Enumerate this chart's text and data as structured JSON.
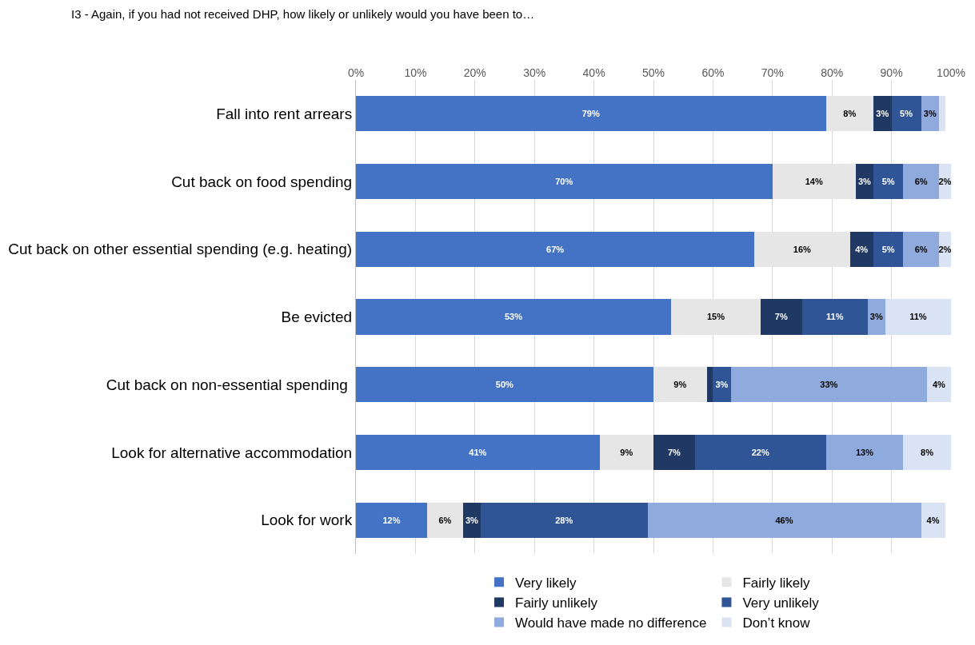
{
  "chart_data": {
    "type": "bar",
    "orientation": "horizontal",
    "stacked": true,
    "title": "I3 - Again, if you had not received DHP, how likely or unlikely would you have been to…",
    "categories": [
      "Fall into rent arrears",
      "Cut back on food spending",
      "Cut back on other essential spending (e.g. heating)",
      "Be evicted",
      "Cut back on non-essential spending ",
      "Look for alternative accommodation",
      "Look for work"
    ],
    "series": [
      {
        "name": "Very likely",
        "color": "#4472c4",
        "values": [
          79,
          70,
          67,
          53,
          50,
          41,
          12
        ],
        "value_labels": [
          "79%",
          "70%",
          "67%",
          "53%",
          "50%",
          "41%",
          "12%"
        ]
      },
      {
        "name": "Fairly likely",
        "color": "#e7e6e6",
        "values": [
          8,
          14,
          16,
          15,
          9,
          9,
          6
        ],
        "value_labels": [
          "8%",
          "14%",
          "16%",
          "15%",
          "9%",
          "9%",
          "6%"
        ]
      },
      {
        "name": "Fairly unlikely",
        "color": "#203864",
        "values": [
          3,
          3,
          4,
          7,
          1,
          7,
          3
        ],
        "value_labels": [
          "3%",
          "3%",
          "4%",
          "7%",
          null,
          "7%",
          "3%"
        ]
      },
      {
        "name": "Very unlikely",
        "color": "#2f5597",
        "values": [
          5,
          5,
          5,
          11,
          3,
          22,
          28
        ],
        "value_labels": [
          "5%",
          "5%",
          "5%",
          "11%",
          "3%",
          "22%",
          "28%"
        ]
      },
      {
        "name": "Would have made no difference",
        "color": "#8faadc",
        "values": [
          3,
          6,
          6,
          3,
          33,
          13,
          46
        ],
        "value_labels": [
          "3%",
          "6%",
          "6%",
          "3%",
          "33%",
          "13%",
          "46%"
        ]
      },
      {
        "name": "Don’t know",
        "color": "#dae3f3",
        "values": [
          1,
          2,
          2,
          11,
          4,
          8,
          4
        ],
        "value_labels": [
          null,
          "2%",
          "2%",
          "11%",
          "4%",
          "8%",
          "4%"
        ]
      }
    ],
    "xlim": [
      0,
      100
    ],
    "xticks": [
      {
        "value": 0,
        "label": "0%"
      },
      {
        "value": 10,
        "label": "10%"
      },
      {
        "value": 20,
        "label": "20%"
      },
      {
        "value": 30,
        "label": "30%"
      },
      {
        "value": 40,
        "label": "40%"
      },
      {
        "value": 50,
        "label": "50%"
      },
      {
        "value": 60,
        "label": "60%"
      },
      {
        "value": 70,
        "label": "70%"
      },
      {
        "value": 80,
        "label": "80%"
      },
      {
        "value": 90,
        "label": "90%"
      },
      {
        "value": 100,
        "label": "100%"
      }
    ],
    "grid": "x",
    "legend": "bottom"
  }
}
